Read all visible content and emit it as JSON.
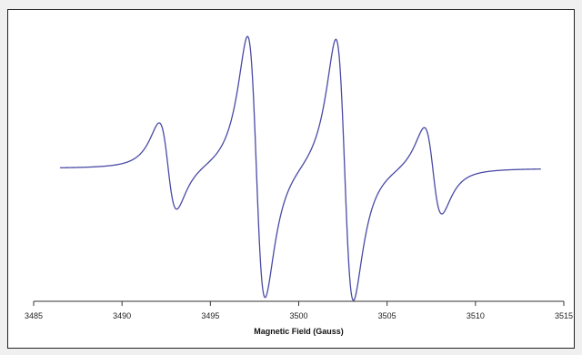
{
  "chart_data": {
    "type": "line",
    "title": "",
    "xlabel": "Magnetic Field (Gauss)",
    "ylabel": "",
    "xlim": [
      3485,
      3515
    ],
    "ylim": [
      -1.0,
      1.0
    ],
    "x_ticks": [
      3485,
      3490,
      3495,
      3500,
      3505,
      3510,
      3515
    ],
    "tick_labels": [
      "3485",
      "3490",
      "3495",
      "3500",
      "3505",
      "3510",
      "3515"
    ],
    "grid": false,
    "line_color": "#4a4aa6",
    "series": [
      {
        "x_range": [
          3486.5,
          3513.7
        ],
        "lines": [
          {
            "center": 3492.6,
            "amplitude": 1
          },
          {
            "center": 3497.6,
            "amplitude": 3
          },
          {
            "center": 3502.6,
            "amplitude": 3
          },
          {
            "center": 3507.6,
            "amplitude": 1
          }
        ],
        "extrema": [
          {
            "x": 3492.1,
            "y": 0.34
          },
          {
            "x": 3493.1,
            "y": -0.34
          },
          {
            "x": 3497.1,
            "y": 1.0
          },
          {
            "x": 3498.1,
            "y": -1.0
          },
          {
            "x": 3502.1,
            "y": 1.0
          },
          {
            "x": 3503.1,
            "y": -1.0
          },
          {
            "x": 3507.1,
            "y": 0.34
          },
          {
            "x": 3508.1,
            "y": -0.34
          }
        ],
        "baseline": 0
      }
    ]
  }
}
